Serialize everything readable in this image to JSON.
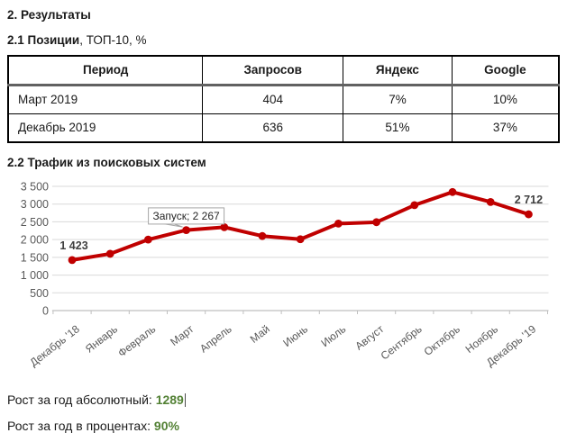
{
  "document": {
    "title": "2. Результаты",
    "section1": {
      "heading_bold": "2.1 Позиции",
      "heading_rest": ", ТОП-10, %"
    },
    "table": {
      "headers": [
        "Период",
        "Запросов",
        "Яндекс",
        "Google"
      ],
      "rows": [
        [
          "Март 2019",
          "404",
          "7%",
          "10%"
        ],
        [
          "Декабрь 2019",
          "636",
          "51%",
          "37%"
        ]
      ]
    },
    "section2": {
      "heading": "2.2 Трафик из поисковых систем"
    },
    "growth": {
      "line1_label": "Рост за год абсолютный: ",
      "line1_value": "1289",
      "line2_label": "Рост за год в процентах: ",
      "line2_value": "90%",
      "value_color": "#538135"
    }
  },
  "chart_data": {
    "type": "line",
    "title": "",
    "xlabel": "",
    "ylabel": "",
    "categories": [
      "Декабрь '18",
      "Январь",
      "Февраль",
      "Март",
      "Апрель",
      "Май",
      "Июнь",
      "Июль",
      "Август",
      "Сентябрь",
      "Октябрь",
      "Ноябрь",
      "Декабрь '19"
    ],
    "values": [
      1423,
      1600,
      2000,
      2267,
      2350,
      2100,
      2010,
      2450,
      2490,
      2970,
      3340,
      3060,
      2712
    ],
    "ylim": [
      0,
      3500
    ],
    "ytick_step": 500,
    "ytick_labels": [
      "0",
      "500",
      "1 000",
      "1 500",
      "2 000",
      "2 500",
      "3 000",
      "3 500"
    ],
    "grid": true,
    "legend": "none",
    "line_color": "#c00000",
    "gridline_color": "#d9d9d9",
    "axis_color": "#bfbfbf",
    "tick_label_color": "#595959",
    "data_label_color": "#3f3f3f",
    "annotations": [
      {
        "type": "data_label",
        "text": "1 423",
        "target_index": 0
      },
      {
        "type": "callout",
        "text": "Запуск; 2 267",
        "target_index": 3
      },
      {
        "type": "data_label",
        "text": "2 712",
        "target_index": 12
      }
    ]
  }
}
